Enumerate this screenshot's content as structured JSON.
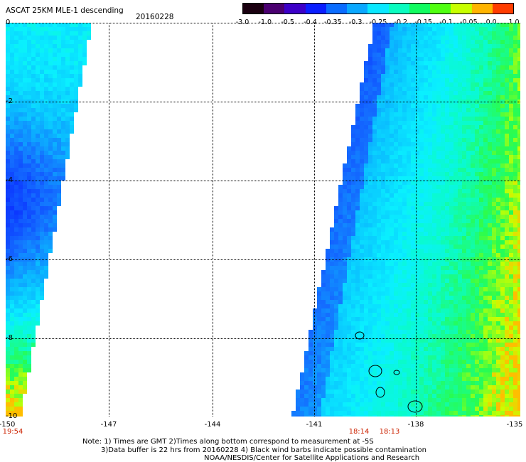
{
  "header": {
    "title": "ASCAT 25KM MLE-1 descending",
    "date": "20160228"
  },
  "colorbar": {
    "labels": [
      "-3.0",
      "-1.0",
      "-0.5",
      "-0.4",
      "-0.35",
      "-0.3",
      "-0.25",
      "-0.2",
      "-0.15",
      "-0.1",
      "-0.05",
      "0.0",
      "1.0"
    ],
    "colors": [
      "#1a0010",
      "#4a0070",
      "#3c00c8",
      "#0a1eff",
      "#0a6cff",
      "#0aa8ff",
      "#0ae8ff",
      "#0afcc0",
      "#10fc60",
      "#50ff10",
      "#c8ff00",
      "#ffb400",
      "#ff3c00"
    ]
  },
  "map": {
    "lat_labels": [
      "0",
      "-2",
      "-4",
      "-6",
      "-8",
      "-10"
    ],
    "lon_labels": [
      "-150",
      "-147",
      "-144",
      "-141",
      "-138",
      "-135"
    ],
    "time_labels": [
      "19:54",
      "18:14",
      "18:13"
    ]
  },
  "notes": {
    "line1": "Note: 1) Times are GMT 2)Times along bottom correspond to measurement at -5S",
    "line2": "3)Data buffer is 22 hrs from 20160228 4) Black wind barbs indicate possible contamination",
    "line3": "NOAA/NESDIS/Center for Satellite Applications and Research"
  }
}
